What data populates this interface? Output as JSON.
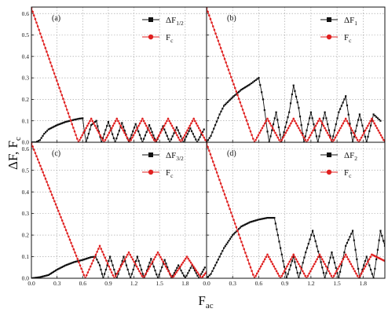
{
  "figure": {
    "ylabel": "ΔF, F",
    "ylabel_sub": "c",
    "xlabel": "F",
    "xlabel_sub": "ac"
  },
  "colors": {
    "delta_series": "#111111",
    "fc_series": "#e02020"
  },
  "chart_data": [
    {
      "type": "line",
      "panel": "(a)",
      "xlim": [
        0.0,
        2.05
      ],
      "ylim": [
        0.0,
        0.63
      ],
      "xticks": [
        "0.0",
        "0.3",
        "0.6",
        "0.9",
        "1.2",
        "1.5",
        "1.8"
      ],
      "yticks": [
        "0.0",
        "0.1",
        "0.2",
        "0.3",
        "0.4",
        "0.5",
        "0.6"
      ],
      "grid": true,
      "legend_position": "top-right",
      "series": [
        {
          "name": "ΔF",
          "name_sub": "1/2",
          "marker": "square",
          "points": [
            [
              0.0,
              0.0
            ],
            [
              0.05,
              0.0
            ],
            [
              0.1,
              0.01
            ],
            [
              0.15,
              0.04
            ],
            [
              0.2,
              0.06
            ],
            [
              0.3,
              0.08
            ],
            [
              0.4,
              0.095
            ],
            [
              0.5,
              0.105
            ],
            [
              0.56,
              0.11
            ],
            [
              0.6,
              0.112
            ],
            [
              0.62,
              0.05
            ],
            [
              0.64,
              0.0
            ],
            [
              0.7,
              0.08
            ],
            [
              0.76,
              0.1
            ],
            [
              0.82,
              0.0
            ],
            [
              0.9,
              0.095
            ],
            [
              0.98,
              0.0
            ],
            [
              1.06,
              0.09
            ],
            [
              1.14,
              0.0
            ],
            [
              1.22,
              0.085
            ],
            [
              1.3,
              0.0
            ],
            [
              1.38,
              0.08
            ],
            [
              1.46,
              0.0
            ],
            [
              1.54,
              0.075
            ],
            [
              1.62,
              0.0
            ],
            [
              1.7,
              0.07
            ],
            [
              1.78,
              0.0
            ],
            [
              1.86,
              0.065
            ],
            [
              1.94,
              0.0
            ],
            [
              2.02,
              0.06
            ]
          ]
        },
        {
          "name": "F",
          "name_sub": "c",
          "marker": "circle",
          "points": [
            [
              0.0,
              0.625
            ],
            [
              0.55,
              0.0
            ],
            [
              0.7,
              0.11
            ],
            [
              0.85,
              0.0
            ],
            [
              1.0,
              0.11
            ],
            [
              1.15,
              0.0
            ],
            [
              1.3,
              0.11
            ],
            [
              1.45,
              0.0
            ],
            [
              1.6,
              0.11
            ],
            [
              1.75,
              0.0
            ],
            [
              1.9,
              0.11
            ],
            [
              2.05,
              0.0
            ]
          ]
        }
      ]
    },
    {
      "type": "line",
      "panel": "(b)",
      "xlim": [
        0.0,
        2.05
      ],
      "ylim": [
        0.0,
        0.63
      ],
      "xticks": [
        "0.0",
        "0.3",
        "0.6",
        "0.9",
        "1.2",
        "1.5",
        "1.8"
      ],
      "yticks": [
        "0.0",
        "0.1",
        "0.2",
        "0.3",
        "0.4",
        "0.5",
        "0.6"
      ],
      "grid": true,
      "legend_position": "top-right",
      "series": [
        {
          "name": "ΔF",
          "name_sub": "1",
          "marker": "square",
          "points": [
            [
              0.0,
              0.0
            ],
            [
              0.05,
              0.03
            ],
            [
              0.1,
              0.08
            ],
            [
              0.15,
              0.13
            ],
            [
              0.2,
              0.17
            ],
            [
              0.3,
              0.21
            ],
            [
              0.4,
              0.245
            ],
            [
              0.5,
              0.27
            ],
            [
              0.55,
              0.285
            ],
            [
              0.6,
              0.3
            ],
            [
              0.65,
              0.2
            ],
            [
              0.7,
              0.05
            ],
            [
              0.72,
              0.0
            ],
            [
              0.8,
              0.14
            ],
            [
              0.86,
              0.0
            ],
            [
              0.95,
              0.14
            ],
            [
              1.0,
              0.265
            ],
            [
              1.06,
              0.16
            ],
            [
              1.12,
              0.0
            ],
            [
              1.2,
              0.14
            ],
            [
              1.28,
              0.0
            ],
            [
              1.36,
              0.14
            ],
            [
              1.44,
              0.0
            ],
            [
              1.52,
              0.14
            ],
            [
              1.6,
              0.215
            ],
            [
              1.68,
              0.0
            ],
            [
              1.76,
              0.13
            ],
            [
              1.84,
              0.0
            ],
            [
              1.92,
              0.13
            ],
            [
              2.0,
              0.1
            ]
          ]
        },
        {
          "name": "F",
          "name_sub": "c",
          "marker": "circle",
          "points": [
            [
              0.0,
              0.625
            ],
            [
              0.55,
              0.0
            ],
            [
              0.7,
              0.11
            ],
            [
              0.85,
              0.0
            ],
            [
              1.0,
              0.11
            ],
            [
              1.15,
              0.0
            ],
            [
              1.3,
              0.11
            ],
            [
              1.45,
              0.0
            ],
            [
              1.6,
              0.11
            ],
            [
              1.75,
              0.0
            ],
            [
              1.9,
              0.11
            ],
            [
              2.05,
              0.0
            ]
          ]
        }
      ]
    },
    {
      "type": "line",
      "panel": "(c)",
      "xlim": [
        0.0,
        2.05
      ],
      "ylim": [
        0.0,
        0.63
      ],
      "xticks": [
        "0.0",
        "0.3",
        "0.6",
        "0.9",
        "1.2",
        "1.5",
        "1.8"
      ],
      "yticks": [
        "0.0",
        "0.1",
        "0.2",
        "0.3",
        "0.4",
        "0.5",
        "0.6"
      ],
      "grid": true,
      "legend_position": "top-right",
      "series": [
        {
          "name": "ΔF",
          "name_sub": "3/2",
          "marker": "square",
          "points": [
            [
              0.0,
              0.0
            ],
            [
              0.1,
              0.005
            ],
            [
              0.2,
              0.015
            ],
            [
              0.3,
              0.04
            ],
            [
              0.4,
              0.06
            ],
            [
              0.5,
              0.075
            ],
            [
              0.6,
              0.085
            ],
            [
              0.7,
              0.098
            ],
            [
              0.75,
              0.1
            ],
            [
              0.8,
              0.06
            ],
            [
              0.84,
              0.0
            ],
            [
              0.92,
              0.1
            ],
            [
              1.0,
              0.0
            ],
            [
              1.08,
              0.1
            ],
            [
              1.16,
              0.0
            ],
            [
              1.24,
              0.1
            ],
            [
              1.32,
              0.0
            ],
            [
              1.4,
              0.09
            ],
            [
              1.48,
              0.0
            ],
            [
              1.56,
              0.085
            ],
            [
              1.64,
              0.0
            ],
            [
              1.72,
              0.06
            ],
            [
              1.8,
              0.0
            ],
            [
              1.88,
              0.06
            ],
            [
              1.96,
              0.0
            ],
            [
              2.03,
              0.05
            ]
          ]
        },
        {
          "name": "F",
          "name_sub": "c",
          "marker": "circle",
          "points": [
            [
              0.0,
              0.625
            ],
            [
              0.63,
              0.0
            ],
            [
              0.8,
              0.15
            ],
            [
              0.97,
              0.0
            ],
            [
              1.14,
              0.12
            ],
            [
              1.31,
              0.0
            ],
            [
              1.48,
              0.12
            ],
            [
              1.65,
              0.0
            ],
            [
              1.82,
              0.1
            ],
            [
              1.99,
              0.0
            ],
            [
              2.05,
              0.03
            ]
          ]
        }
      ]
    },
    {
      "type": "line",
      "panel": "(d)",
      "xlim": [
        0.0,
        2.05
      ],
      "ylim": [
        0.0,
        0.63
      ],
      "xticks": [
        "0.0",
        "0.3",
        "0.6",
        "0.9",
        "1.2",
        "1.5",
        "1.8"
      ],
      "yticks": [
        "0.0",
        "0.1",
        "0.2",
        "0.3",
        "0.4",
        "0.5",
        "0.6"
      ],
      "grid": true,
      "legend_position": "top-right",
      "series": [
        {
          "name": "ΔF",
          "name_sub": "2",
          "marker": "square",
          "points": [
            [
              0.0,
              0.0
            ],
            [
              0.05,
              0.02
            ],
            [
              0.1,
              0.06
            ],
            [
              0.15,
              0.1
            ],
            [
              0.2,
              0.14
            ],
            [
              0.3,
              0.2
            ],
            [
              0.4,
              0.24
            ],
            [
              0.5,
              0.26
            ],
            [
              0.6,
              0.272
            ],
            [
              0.7,
              0.28
            ],
            [
              0.78,
              0.28
            ],
            [
              0.82,
              0.2
            ],
            [
              0.88,
              0.08
            ],
            [
              0.92,
              0.0
            ],
            [
              1.0,
              0.1
            ],
            [
              1.06,
              0.0
            ],
            [
              1.14,
              0.12
            ],
            [
              1.22,
              0.22
            ],
            [
              1.3,
              0.1
            ],
            [
              1.36,
              0.0
            ],
            [
              1.44,
              0.12
            ],
            [
              1.52,
              0.0
            ],
            [
              1.6,
              0.15
            ],
            [
              1.68,
              0.22
            ],
            [
              1.76,
              0.0
            ],
            [
              1.84,
              0.1
            ],
            [
              1.92,
              0.0
            ],
            [
              2.0,
              0.22
            ],
            [
              2.05,
              0.15
            ]
          ]
        },
        {
          "name": "F",
          "name_sub": "c",
          "marker": "circle",
          "points": [
            [
              0.0,
              0.625
            ],
            [
              0.55,
              0.0
            ],
            [
              0.7,
              0.11
            ],
            [
              0.85,
              0.0
            ],
            [
              1.0,
              0.11
            ],
            [
              1.15,
              0.0
            ],
            [
              1.3,
              0.11
            ],
            [
              1.45,
              0.0
            ],
            [
              1.6,
              0.11
            ],
            [
              1.75,
              0.0
            ],
            [
              1.9,
              0.11
            ],
            [
              2.05,
              0.08
            ]
          ]
        }
      ]
    }
  ]
}
